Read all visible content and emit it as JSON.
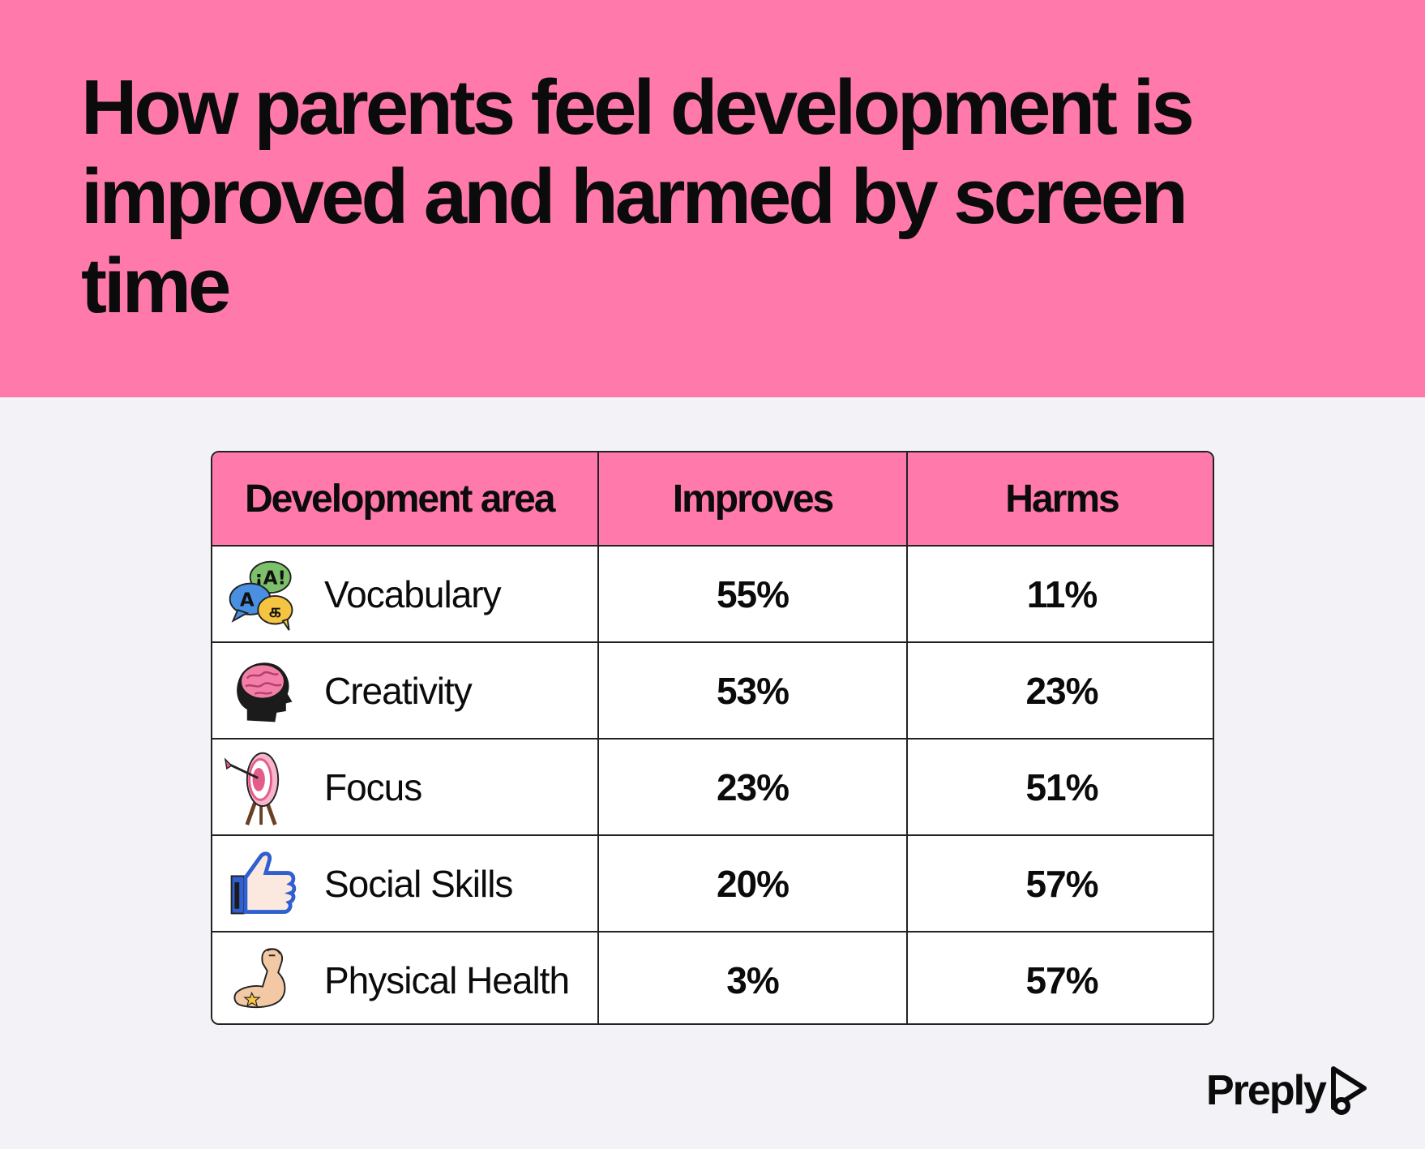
{
  "header": {
    "title": "How parents feel development is improved and harmed by screen time"
  },
  "brand": {
    "name": "Preply"
  },
  "colors": {
    "accent": "#ff7aab",
    "background": "#f3f2f7",
    "text": "#0b0b0b"
  },
  "chart_data": {
    "type": "table",
    "title": "How parents feel development is improved and harmed by screen time",
    "columns": [
      "Development area",
      "Improves",
      "Harms"
    ],
    "rows": [
      {
        "area": "Vocabulary",
        "icon": "speech-bubbles-icon",
        "improves": "55%",
        "harms": "11%"
      },
      {
        "area": "Creativity",
        "icon": "brain-head-icon",
        "improves": "53%",
        "harms": "23%"
      },
      {
        "area": "Focus",
        "icon": "target-arrow-icon",
        "improves": "23%",
        "harms": "51%"
      },
      {
        "area": "Social Skills",
        "icon": "thumbs-up-icon",
        "improves": "20%",
        "harms": "57%"
      },
      {
        "area": "Physical Health",
        "icon": "flexed-bicep-icon",
        "improves": "3%",
        "harms": "57%"
      }
    ]
  }
}
